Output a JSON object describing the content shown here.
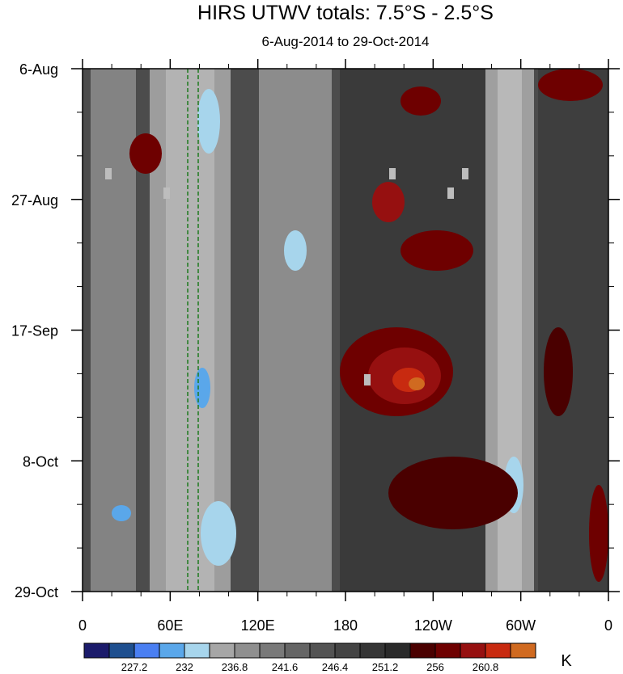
{
  "chart_data": {
    "type": "heatmap",
    "title": "HIRS UTWV totals: 7.5°S - 2.5°S",
    "subtitle": "6-Aug-2014 to 29-Oct-2014",
    "units": "K",
    "x_ticks": [
      "0",
      "60E",
      "120E",
      "180",
      "120W",
      "60W",
      "0"
    ],
    "y_ticks": [
      "6-Aug",
      "27-Aug",
      "17-Sep",
      "8-Oct",
      "29-Oct"
    ],
    "colorbar": {
      "colors": [
        "#1b1b6b",
        "#1e4f8f",
        "#4a7ff2",
        "#5aa7ea",
        "#a7d5ec",
        "#a6a6a6",
        "#8f8f8f",
        "#797979",
        "#656565",
        "#535353",
        "#444444",
        "#353535",
        "#2a2a2a",
        "#4a0000",
        "#6e0000",
        "#961010",
        "#c82a10",
        "#d06a20"
      ],
      "labels": [
        "227.2",
        "232",
        "236.8",
        "241.6",
        "246.4",
        "251.2",
        "256",
        "260.8"
      ]
    }
  }
}
